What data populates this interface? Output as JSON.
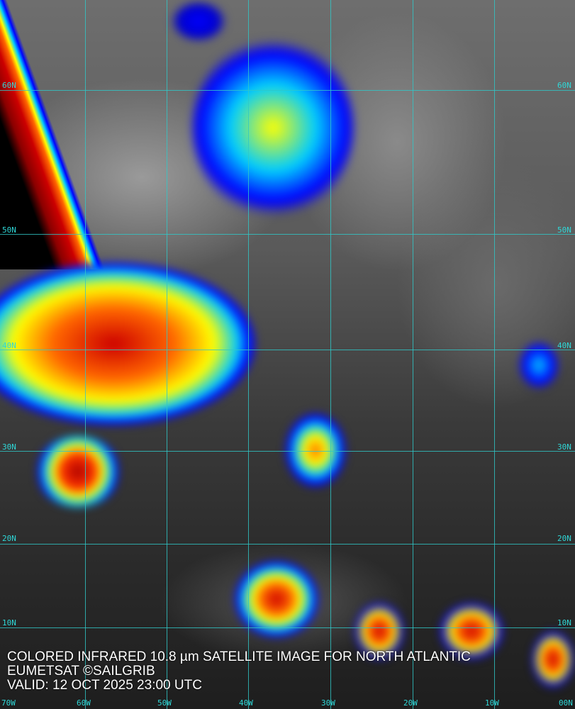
{
  "caption": {
    "line1": "COLORED INFRARED 10.8 µm SATELLITE IMAGE FOR NORTH ATLANTIC",
    "line2": "EUMETSAT ©SAILGRIB",
    "line3": "VALID:  12 OCT 2025 23:00 UTC"
  },
  "grid": {
    "lat_labels": [
      "60N",
      "50N",
      "40N",
      "30N",
      "20N",
      "10N"
    ],
    "lon_labels": [
      "70W",
      "60W",
      "50W",
      "40W",
      "30W",
      "20W",
      "10W",
      "00N"
    ]
  },
  "colors": {
    "grid": "#2fc8c8",
    "cold_cloud_scale": [
      "#0000ff",
      "#00ccff",
      "#ffff00",
      "#ff6600",
      "#cc0000",
      "#8b0000"
    ]
  }
}
